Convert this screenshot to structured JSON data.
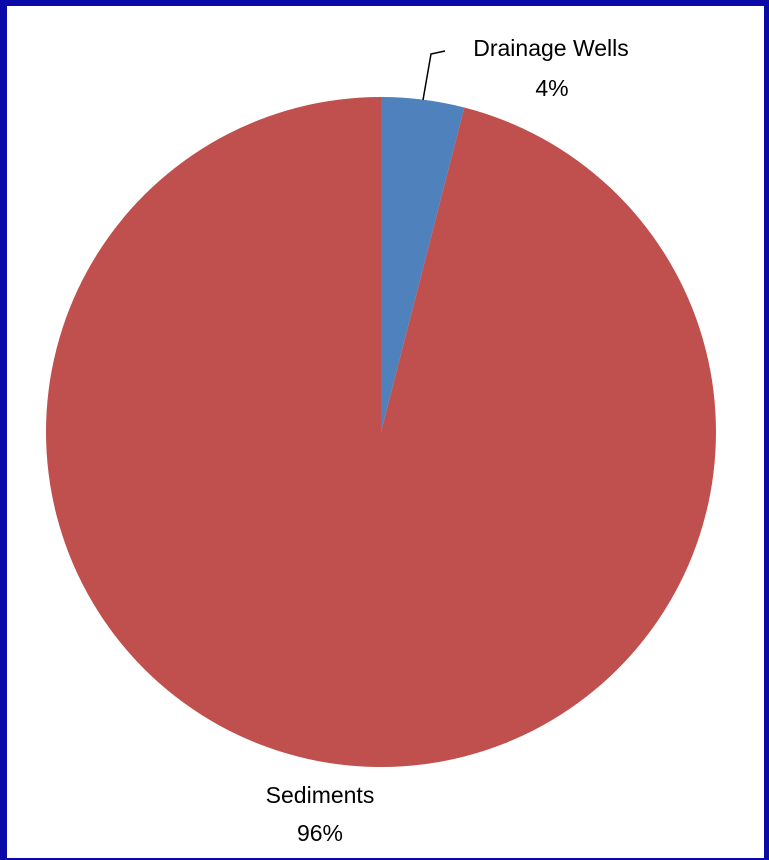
{
  "chart_data": {
    "type": "pie",
    "slices": [
      {
        "label": "Drainage Wells",
        "value": 4,
        "value_label": "4%",
        "color": "#4F81BD"
      },
      {
        "label": "Sediments",
        "value": 96,
        "value_label": "96%",
        "color": "#C0504D"
      }
    ],
    "start_angle": "12 o'clock",
    "direction": "clockwise",
    "legend": "none",
    "data_labels": "outside"
  },
  "colors": {
    "background": "#0a0aa8",
    "panel": "#ffffff"
  }
}
